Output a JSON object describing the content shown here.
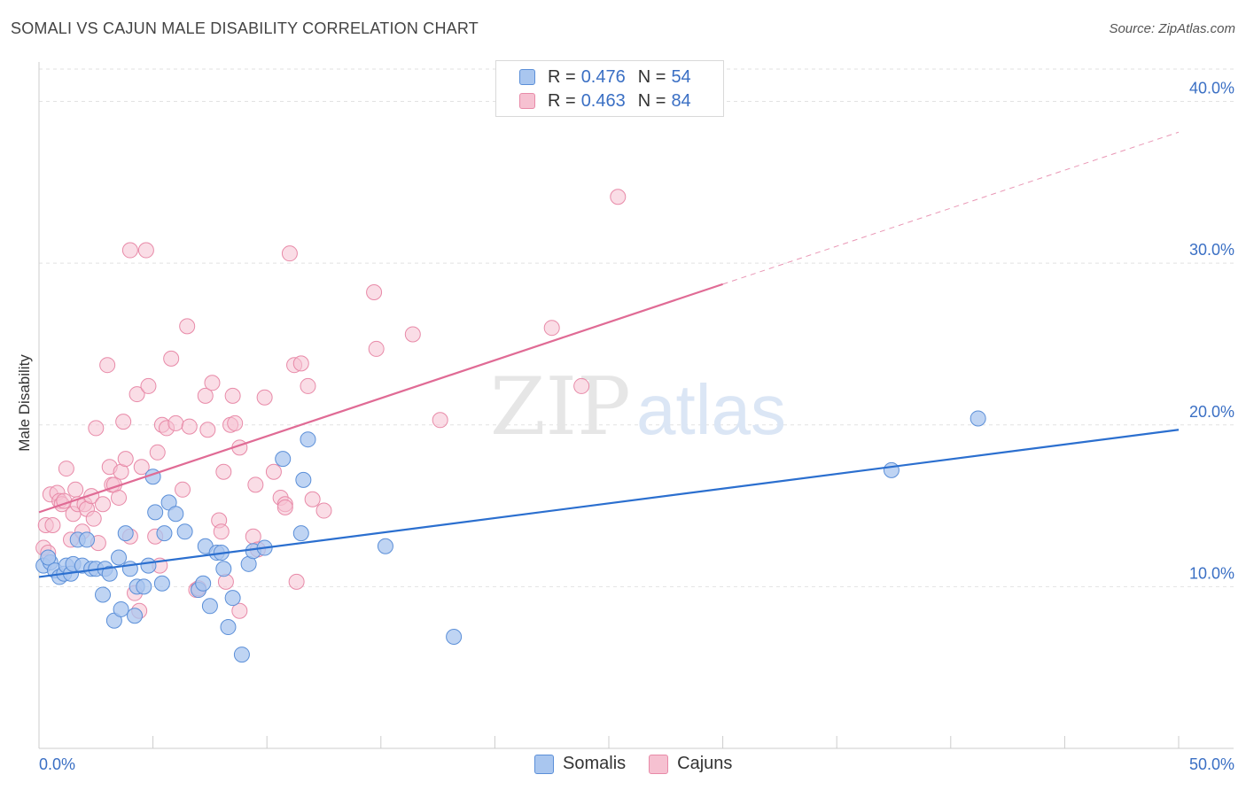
{
  "header": {
    "title": "SOMALI VS CAJUN MALE DISABILITY CORRELATION CHART",
    "source": "Source: ZipAtlas.com"
  },
  "legend": {
    "r_label": "R =",
    "n_label": "N =",
    "rows": [
      {
        "name": "Somalis",
        "r": "0.476",
        "n": "54"
      },
      {
        "name": "Cajuns",
        "r": "0.463",
        "n": "84"
      }
    ]
  },
  "watermark": {
    "zip": "ZIP",
    "atlas": "atlas"
  },
  "colors": {
    "somalis_fill": "#a9c6ef",
    "somalis_stroke": "#5b8fd8",
    "somalis_line": "#2b6fcf",
    "cajuns_fill": "#f6c1d1",
    "cajuns_stroke": "#e88aa8",
    "cajuns_line": "#e06b95",
    "axis_text": "#3a6fc4",
    "grid": "#e2e2e2"
  },
  "chart_data": {
    "type": "scatter",
    "title": "SOMALI VS CAJUN MALE DISABILITY CORRELATION CHART",
    "xlabel": "",
    "ylabel": "Male Disability",
    "xlim": [
      0,
      50
    ],
    "ylim": [
      0,
      42
    ],
    "x_tick_labels": [
      "0.0%",
      "50.0%"
    ],
    "y_ticks": [
      10,
      20,
      30,
      40
    ],
    "y_tick_labels": [
      "10.0%",
      "20.0%",
      "30.0%",
      "40.0%"
    ],
    "grid": true,
    "legend_position": "top-center",
    "series": [
      {
        "name": "Somalis",
        "trend": {
          "x": [
            0,
            50
          ],
          "y": [
            10.6,
            19.7
          ]
        },
        "points": [
          [
            0.2,
            11.3
          ],
          [
            0.5,
            11.5
          ],
          [
            0.4,
            11.8
          ],
          [
            0.7,
            11.0
          ],
          [
            0.9,
            10.6
          ],
          [
            1.1,
            10.8
          ],
          [
            1.2,
            11.3
          ],
          [
            1.4,
            10.8
          ],
          [
            1.5,
            11.4
          ],
          [
            1.7,
            12.9
          ],
          [
            1.9,
            11.3
          ],
          [
            2.1,
            12.9
          ],
          [
            2.3,
            11.1
          ],
          [
            2.5,
            11.1
          ],
          [
            2.8,
            9.5
          ],
          [
            2.9,
            11.1
          ],
          [
            3.1,
            10.8
          ],
          [
            3.3,
            7.9
          ],
          [
            3.5,
            11.8
          ],
          [
            3.6,
            8.6
          ],
          [
            3.8,
            13.3
          ],
          [
            4.0,
            11.1
          ],
          [
            4.2,
            8.2
          ],
          [
            4.3,
            10.0
          ],
          [
            4.6,
            10.0
          ],
          [
            4.8,
            11.3
          ],
          [
            5.0,
            16.8
          ],
          [
            5.1,
            14.6
          ],
          [
            5.4,
            10.2
          ],
          [
            5.5,
            13.3
          ],
          [
            5.7,
            15.2
          ],
          [
            6.0,
            14.5
          ],
          [
            6.4,
            13.4
          ],
          [
            7.0,
            9.8
          ],
          [
            7.2,
            10.2
          ],
          [
            7.3,
            12.5
          ],
          [
            7.5,
            8.8
          ],
          [
            7.8,
            12.1
          ],
          [
            8.0,
            12.1
          ],
          [
            8.1,
            11.1
          ],
          [
            8.3,
            7.5
          ],
          [
            8.5,
            9.3
          ],
          [
            8.9,
            5.8
          ],
          [
            9.2,
            11.4
          ],
          [
            9.4,
            12.2
          ],
          [
            9.9,
            12.4
          ],
          [
            10.7,
            17.9
          ],
          [
            11.5,
            13.3
          ],
          [
            11.6,
            16.6
          ],
          [
            11.8,
            19.1
          ],
          [
            15.2,
            12.5
          ],
          [
            18.2,
            6.9
          ],
          [
            37.4,
            17.2
          ],
          [
            41.2,
            20.4
          ]
        ]
      },
      {
        "name": "Cajuns",
        "trend": {
          "x": [
            0,
            30
          ],
          "y": [
            14.6,
            28.7
          ],
          "dashed_extension": {
            "x": [
              30,
              50
            ],
            "y": [
              28.7,
              38.1
            ]
          }
        },
        "points": [
          [
            0.2,
            12.4
          ],
          [
            0.3,
            13.8
          ],
          [
            0.4,
            12.1
          ],
          [
            0.5,
            15.7
          ],
          [
            0.6,
            13.8
          ],
          [
            0.8,
            15.8
          ],
          [
            0.9,
            15.3
          ],
          [
            1.0,
            15.1
          ],
          [
            1.1,
            15.3
          ],
          [
            1.2,
            17.3
          ],
          [
            1.4,
            12.9
          ],
          [
            1.5,
            14.5
          ],
          [
            1.6,
            16.0
          ],
          [
            1.7,
            15.1
          ],
          [
            1.9,
            13.4
          ],
          [
            2.0,
            15.1
          ],
          [
            2.1,
            14.8
          ],
          [
            2.3,
            15.6
          ],
          [
            2.4,
            14.2
          ],
          [
            2.5,
            19.8
          ],
          [
            2.6,
            12.7
          ],
          [
            2.8,
            15.1
          ],
          [
            3.0,
            23.7
          ],
          [
            3.1,
            17.4
          ],
          [
            3.2,
            16.3
          ],
          [
            3.3,
            16.3
          ],
          [
            3.5,
            15.5
          ],
          [
            3.6,
            17.1
          ],
          [
            3.7,
            20.2
          ],
          [
            3.8,
            17.9
          ],
          [
            4.0,
            13.1
          ],
          [
            4.0,
            30.8
          ],
          [
            4.2,
            9.6
          ],
          [
            4.3,
            21.9
          ],
          [
            4.4,
            8.5
          ],
          [
            4.5,
            17.4
          ],
          [
            4.7,
            30.8
          ],
          [
            4.8,
            22.4
          ],
          [
            5.1,
            13.1
          ],
          [
            5.2,
            18.3
          ],
          [
            5.3,
            11.3
          ],
          [
            5.4,
            20.0
          ],
          [
            5.6,
            19.8
          ],
          [
            5.8,
            24.1
          ],
          [
            6.0,
            20.1
          ],
          [
            6.3,
            16.0
          ],
          [
            6.5,
            26.1
          ],
          [
            6.6,
            19.9
          ],
          [
            6.9,
            9.8
          ],
          [
            7.0,
            9.9
          ],
          [
            7.3,
            21.8
          ],
          [
            7.4,
            19.7
          ],
          [
            7.6,
            22.6
          ],
          [
            7.9,
            14.1
          ],
          [
            8.0,
            13.4
          ],
          [
            8.1,
            17.1
          ],
          [
            8.2,
            10.3
          ],
          [
            8.4,
            20.0
          ],
          [
            8.5,
            21.8
          ],
          [
            8.6,
            20.1
          ],
          [
            8.8,
            18.6
          ],
          [
            8.8,
            8.5
          ],
          [
            9.4,
            13.1
          ],
          [
            9.5,
            16.3
          ],
          [
            9.6,
            12.3
          ],
          [
            9.9,
            21.7
          ],
          [
            10.3,
            17.1
          ],
          [
            10.6,
            15.5
          ],
          [
            10.8,
            15.1
          ],
          [
            10.8,
            14.9
          ],
          [
            11.0,
            30.6
          ],
          [
            11.2,
            23.7
          ],
          [
            11.3,
            10.3
          ],
          [
            11.5,
            23.8
          ],
          [
            11.8,
            22.4
          ],
          [
            12.0,
            15.4
          ],
          [
            12.5,
            14.7
          ],
          [
            14.7,
            28.2
          ],
          [
            14.8,
            24.7
          ],
          [
            16.4,
            25.6
          ],
          [
            17.6,
            20.3
          ],
          [
            22.5,
            26.0
          ],
          [
            23.8,
            22.4
          ],
          [
            25.4,
            34.1
          ]
        ]
      }
    ]
  }
}
